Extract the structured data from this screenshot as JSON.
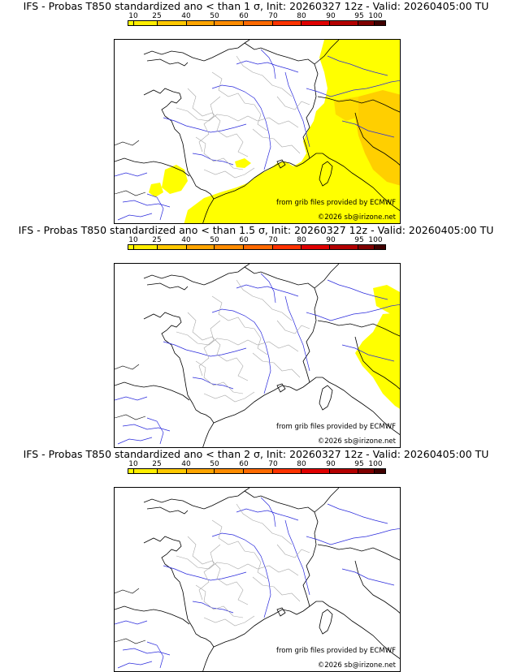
{
  "scale": {
    "ticks": [
      "10",
      "25",
      "40",
      "50",
      "60",
      "70",
      "80",
      "90",
      "95",
      "100"
    ],
    "colors": [
      "#ffff00",
      "#ffee00",
      "#ffc800",
      "#ffa500",
      "#ff8c00",
      "#ff6a00",
      "#ff3300",
      "#e00000",
      "#b40000",
      "#800000",
      "#400000"
    ]
  },
  "panels": [
    {
      "title": "IFS - Probas T850  standardized ano < than 1 σ, Init: 20260327 12z - Valid: 20260405:00 TU",
      "credit_source": "from grib files provided by ECMWF",
      "credit_copyright": "©2026 sb@irizone.net"
    },
    {
      "title": "IFS - Probas T850  standardized ano < than 1.5 σ, Init: 20260327 12z - Valid: 20260405:00 TU",
      "credit_source": "from grib files provided by ECMWF",
      "credit_copyright": "©2026 sb@irizone.net"
    },
    {
      "title": "IFS - Probas T850  standardized ano < than 2 σ, Init: 20260327 12z - Valid: 20260405:00 TU",
      "credit_source": "from grib files provided by ECMWF",
      "credit_copyright": "©2026 sb@irizone.net"
    }
  ]
}
